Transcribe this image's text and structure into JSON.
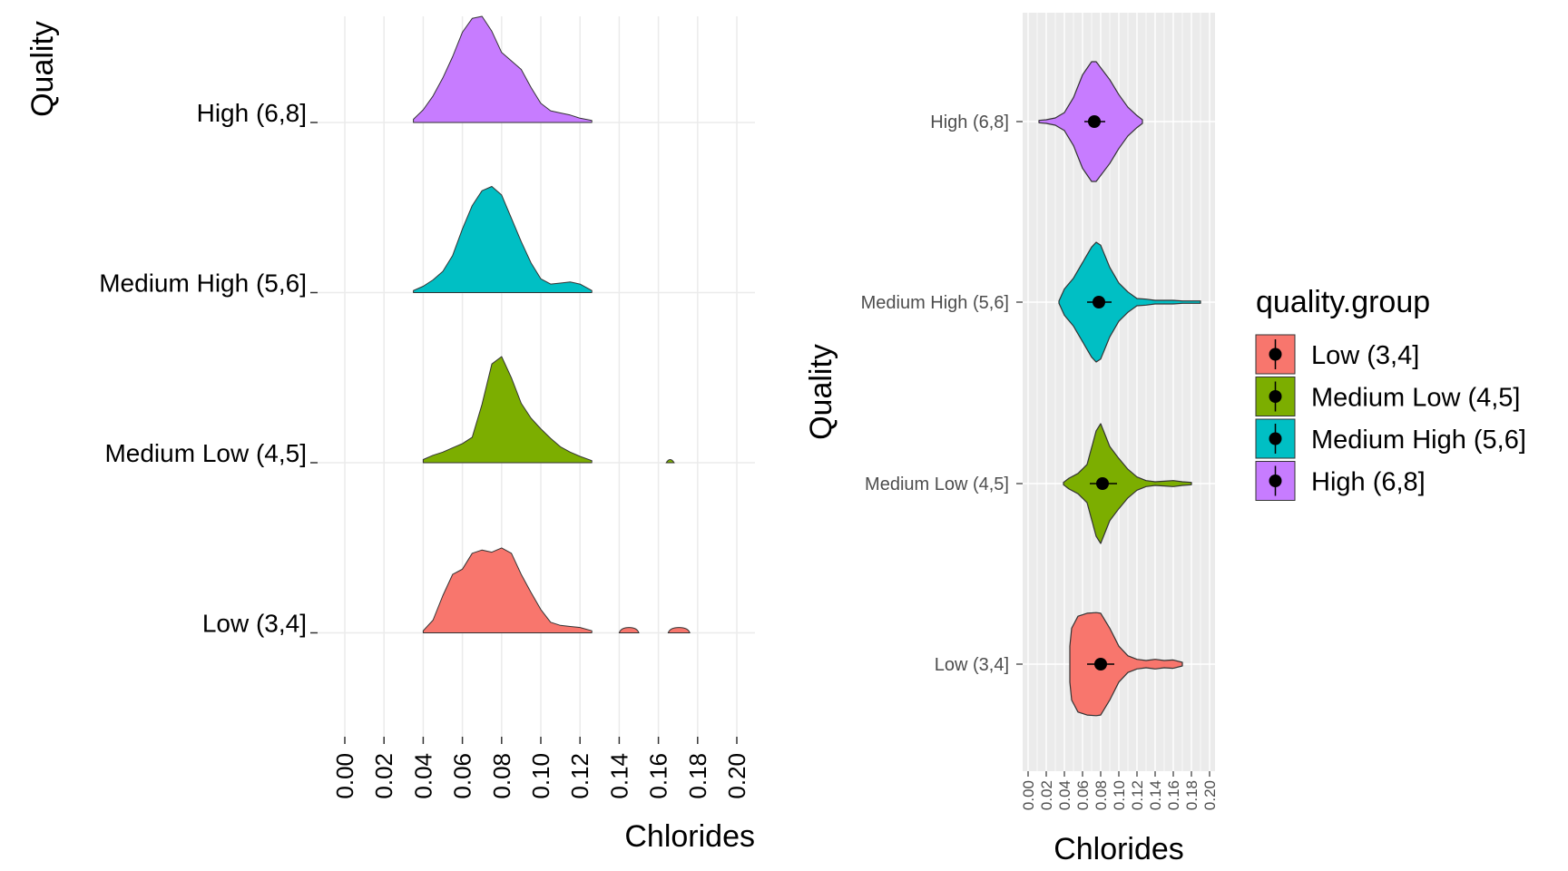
{
  "colors": {
    "low": "#F8766D",
    "medium_low": "#7CAE00",
    "medium_high": "#00BFC4",
    "high": "#C77CFF",
    "panel_bg_right": "#EBEBEB",
    "grid_left": "#EBEBEB",
    "grid_right": "#FFFFFF"
  },
  "chart_data": [
    {
      "type": "area",
      "subtype": "ridgeline-density",
      "xlabel": "Chlorides",
      "ylabel": "Quality",
      "xlim": [
        0.0,
        0.2
      ],
      "xticks": [
        "0.00",
        "0.02",
        "0.04",
        "0.06",
        "0.08",
        "0.10",
        "0.12",
        "0.14",
        "0.16",
        "0.18",
        "0.20"
      ],
      "categories": [
        "High (6,8]",
        "Medium High (5,6]",
        "Medium Low (4,5]",
        "Low (3,4]"
      ],
      "series": [
        {
          "name": "High (6,8]",
          "color": "#C77CFF",
          "x": [
            0.035,
            0.04,
            0.045,
            0.05,
            0.055,
            0.06,
            0.065,
            0.07,
            0.075,
            0.08,
            0.085,
            0.09,
            0.095,
            0.1,
            0.105,
            0.11,
            0.115,
            0.12,
            0.126
          ],
          "density": [
            0.03,
            0.12,
            0.25,
            0.42,
            0.62,
            0.85,
            0.98,
            1.0,
            0.86,
            0.66,
            0.58,
            0.5,
            0.33,
            0.18,
            0.11,
            0.09,
            0.07,
            0.04,
            0.02
          ]
        },
        {
          "name": "Medium High (5,6]",
          "color": "#00BFC4",
          "x": [
            0.035,
            0.04,
            0.045,
            0.05,
            0.055,
            0.06,
            0.065,
            0.07,
            0.075,
            0.08,
            0.085,
            0.09,
            0.095,
            0.1,
            0.105,
            0.11,
            0.115,
            0.12,
            0.126
          ],
          "density": [
            0.02,
            0.06,
            0.12,
            0.2,
            0.35,
            0.6,
            0.82,
            0.96,
            1.0,
            0.92,
            0.7,
            0.48,
            0.28,
            0.13,
            0.08,
            0.09,
            0.1,
            0.08,
            0.02
          ]
        },
        {
          "name": "Medium Low (4,5]",
          "color": "#7CAE00",
          "x": [
            0.04,
            0.045,
            0.05,
            0.055,
            0.06,
            0.065,
            0.07,
            0.075,
            0.08,
            0.085,
            0.09,
            0.095,
            0.1,
            0.105,
            0.11,
            0.115,
            0.12,
            0.126
          ],
          "density": [
            0.03,
            0.07,
            0.1,
            0.14,
            0.18,
            0.24,
            0.55,
            0.93,
            1.0,
            0.8,
            0.56,
            0.42,
            0.32,
            0.23,
            0.15,
            0.1,
            0.06,
            0.02
          ],
          "bumps": [
            {
              "x": [
                0.164,
                0.168
              ],
              "peak": 0.03
            }
          ]
        },
        {
          "name": "Low (3,4]",
          "color": "#F8766D",
          "x": [
            0.04,
            0.045,
            0.05,
            0.055,
            0.06,
            0.065,
            0.07,
            0.075,
            0.08,
            0.085,
            0.09,
            0.095,
            0.1,
            0.105,
            0.11,
            0.115,
            0.12,
            0.126
          ],
          "density": [
            0.02,
            0.12,
            0.35,
            0.55,
            0.6,
            0.75,
            0.78,
            0.76,
            0.8,
            0.75,
            0.55,
            0.38,
            0.22,
            0.1,
            0.07,
            0.06,
            0.05,
            0.02
          ],
          "bumps": [
            {
              "x": [
                0.14,
                0.15
              ],
              "peak": 0.05
            },
            {
              "x": [
                0.165,
                0.176
              ],
              "peak": 0.05
            }
          ]
        }
      ]
    },
    {
      "type": "violin",
      "xlabel": "Chlorides",
      "ylabel": "Quality",
      "xlim": [
        0.0,
        0.2
      ],
      "xticks": [
        "0.00",
        "0.02",
        "0.04",
        "0.06",
        "0.08",
        "0.10",
        "0.12",
        "0.14",
        "0.16",
        "0.18",
        "0.20"
      ],
      "categories": [
        "High (6,8]",
        "Medium High (5,6]",
        "Medium Low (4,5]",
        "Low (3,4]"
      ],
      "legend": {
        "title": "quality.group",
        "position": "right",
        "items": [
          "Low (3,4]",
          "Medium Low (4,5]",
          "Medium High (5,6]",
          "High (6,8]"
        ]
      },
      "series": [
        {
          "name": "High (6,8]",
          "color": "#C77CFF",
          "mean": 0.073,
          "sd_range": [
            0.062,
            0.085
          ],
          "x": [
            0.012,
            0.02,
            0.03,
            0.04,
            0.05,
            0.06,
            0.07,
            0.075,
            0.08,
            0.09,
            0.1,
            0.11,
            0.12,
            0.126
          ],
          "density": [
            0.02,
            0.03,
            0.06,
            0.15,
            0.4,
            0.78,
            1.0,
            1.0,
            0.9,
            0.7,
            0.45,
            0.24,
            0.1,
            0.03
          ]
        },
        {
          "name": "Medium High (5,6]",
          "color": "#00BFC4",
          "mean": 0.078,
          "sd_range": [
            0.065,
            0.092
          ],
          "x": [
            0.034,
            0.04,
            0.05,
            0.06,
            0.07,
            0.075,
            0.08,
            0.09,
            0.1,
            0.11,
            0.12,
            0.13,
            0.14,
            0.16,
            0.17,
            0.19
          ],
          "density": [
            0.02,
            0.22,
            0.4,
            0.66,
            0.92,
            1.0,
            0.95,
            0.58,
            0.32,
            0.17,
            0.06,
            0.05,
            0.03,
            0.03,
            0.02,
            0.02
          ]
        },
        {
          "name": "Medium Low (4,5]",
          "color": "#7CAE00",
          "mean": 0.082,
          "sd_range": [
            0.068,
            0.098
          ],
          "x": [
            0.039,
            0.045,
            0.055,
            0.065,
            0.075,
            0.08,
            0.09,
            0.1,
            0.11,
            0.12,
            0.13,
            0.14,
            0.15,
            0.16,
            0.17,
            0.18
          ],
          "density": [
            0.02,
            0.09,
            0.17,
            0.32,
            0.88,
            1.0,
            0.62,
            0.42,
            0.24,
            0.11,
            0.05,
            0.03,
            0.04,
            0.05,
            0.03,
            0.02
          ]
        },
        {
          "name": "Low (3,4]",
          "color": "#F8766D",
          "mean": 0.08,
          "sd_range": [
            0.065,
            0.095
          ],
          "x": [
            0.046,
            0.048,
            0.055,
            0.065,
            0.075,
            0.08,
            0.09,
            0.1,
            0.11,
            0.12,
            0.13,
            0.14,
            0.15,
            0.16,
            0.17
          ],
          "density": [
            0.3,
            0.6,
            0.8,
            0.85,
            0.86,
            0.85,
            0.6,
            0.3,
            0.14,
            0.08,
            0.06,
            0.08,
            0.06,
            0.07,
            0.03
          ]
        }
      ]
    }
  ]
}
